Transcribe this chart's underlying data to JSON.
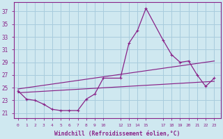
{
  "bg_color": "#cfe8f0",
  "line_color": "#882288",
  "grid_color": "#a8ccdd",
  "xlabel": "Windchill (Refroidissement éolien,°C)",
  "yticks": [
    21,
    23,
    25,
    27,
    29,
    31,
    33,
    35,
    37
  ],
  "xtick_labels": [
    "0",
    "1",
    "2",
    "3",
    "4",
    "5",
    "6",
    "7",
    "8",
    "9",
    "10",
    "12",
    "13",
    "14",
    "15",
    "17",
    "18",
    "19",
    "20",
    "21",
    "22",
    "23"
  ],
  "xtick_pos": [
    0,
    1,
    2,
    3,
    4,
    5,
    6,
    7,
    8,
    9,
    10,
    12,
    13,
    14,
    15,
    17,
    18,
    19,
    20,
    21,
    22,
    23
  ],
  "xlim": [
    -0.5,
    23.8
  ],
  "ylim": [
    20.2,
    38.5
  ],
  "curve1_x": [
    0,
    1,
    2,
    3,
    4,
    5,
    6,
    7,
    8,
    9,
    10,
    12,
    13,
    14,
    15,
    17,
    18,
    19,
    20,
    21,
    22,
    23
  ],
  "curve1_y": [
    24.5,
    23.2,
    23.0,
    22.4,
    21.6,
    21.4,
    21.4,
    21.4,
    23.2,
    24.0,
    26.5,
    26.5,
    32.0,
    34.0,
    37.5,
    32.5,
    30.2,
    29.0,
    29.2,
    27.0,
    25.2,
    26.5
  ],
  "curve2_x": [
    0,
    23
  ],
  "curve2_y": [
    24.2,
    26.0
  ],
  "curve3_x": [
    0,
    23
  ],
  "curve3_y": [
    24.8,
    29.2
  ]
}
